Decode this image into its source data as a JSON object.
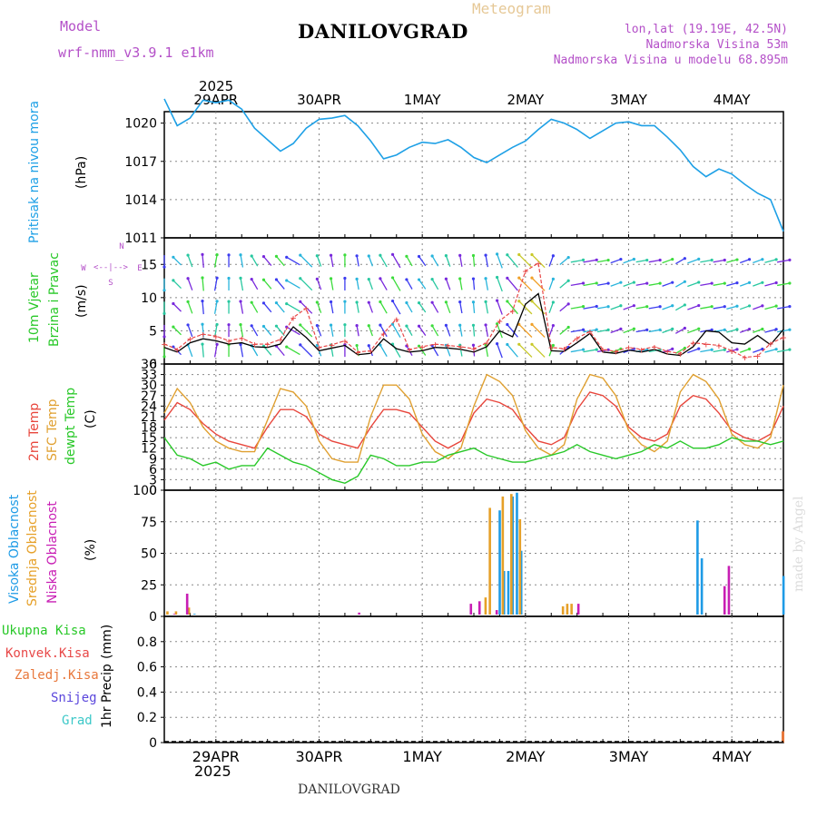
{
  "header": {
    "model_label": "Model",
    "model_name": "wrf-nmm_v3.9.1 e1km",
    "title": "DANILOVGRAD",
    "meteogram_label": "Meteogram",
    "lonlat": "lon,lat (19.19E, 42.5N)",
    "altitude": "Nadmorska Visina 53m",
    "model_altitude": "Nadmorska Visina u modelu 68.895m",
    "footer_title": "DANILOVGRAD",
    "watermark": "made by Angel"
  },
  "colors": {
    "pressure": "#1ea0e6",
    "temp2m": "#e8463c",
    "sfc": "#e0a030",
    "dewpt": "#28c828",
    "high_cloud": "#1e9be6",
    "mid_cloud": "#e6a028",
    "low_cloud": "#c81eb4",
    "purple_text": "#b450c8",
    "model_text": "#b450c8",
    "meteogram_text": "#e6c896"
  },
  "time_axis": {
    "year": "2025",
    "dates": [
      "29APR",
      "30APR",
      "1MAY",
      "2MAY",
      "3MAY",
      "4MAY"
    ]
  },
  "chart_data": [
    {
      "type": "line",
      "panel": "pressure",
      "ylabel_main": "Pritisak na nivou mora",
      "ylabel_unit": "(hPa)",
      "yticks": [
        1011,
        1014,
        1017,
        1020
      ],
      "ylim": [
        1011,
        1020.9
      ],
      "x_hours": [
        0,
        3,
        6,
        9,
        12,
        15,
        18,
        21,
        24,
        27,
        30,
        33,
        36,
        39,
        42,
        45,
        48,
        51,
        54,
        57,
        60,
        63,
        66,
        69,
        72,
        75,
        78,
        81,
        84,
        87,
        90,
        93,
        96,
        99,
        102,
        105,
        108,
        111,
        114,
        117,
        120,
        123,
        126,
        129,
        132,
        135,
        138,
        141,
        144
      ],
      "series": [
        {
          "values": [
            1021.9,
            1019.8,
            1020.4,
            1021.8,
            1021.6,
            1021.8,
            1021.1,
            1019.6,
            1018.7,
            1017.8,
            1018.4,
            1019.6,
            1020.3,
            1020.4,
            1020.6,
            1019.8,
            1018.6,
            1017.2,
            1017.5,
            1018.1,
            1018.5,
            1018.4,
            1018.7,
            1018.1,
            1017.3,
            1016.9,
            1017.5,
            1018.1,
            1018.6,
            1019.5,
            1020.3,
            1020.0,
            1019.5,
            1018.8,
            1019.4,
            1020.0,
            1020.1,
            1019.8,
            1019.8,
            1018.9,
            1017.9,
            1016.6,
            1015.8,
            1016.4,
            1016.0,
            1015.2,
            1014.5,
            1014.0,
            1011.5
          ]
        }
      ]
    },
    {
      "type": "line",
      "panel": "wind",
      "ylabel_main": "10m Vjetar",
      "ylabel_sub": "Brzina i Pravac",
      "ylabel_unit": "(m/s)",
      "compass": [
        "N",
        "W",
        "E",
        "S",
        "<--|-->"
      ],
      "yticks": [
        0,
        5,
        10,
        15
      ],
      "ylim": [
        0,
        19
      ],
      "x_hours": [
        0,
        3,
        6,
        9,
        12,
        15,
        18,
        21,
        24,
        27,
        30,
        33,
        36,
        39,
        42,
        45,
        48,
        51,
        54,
        57,
        60,
        63,
        66,
        69,
        72,
        75,
        78,
        81,
        84,
        87,
        90,
        93,
        96,
        99,
        102,
        105,
        108,
        111,
        114,
        117,
        120,
        123,
        126,
        129,
        132,
        135,
        138,
        141,
        144
      ],
      "series": [
        {
          "values": [
            2.5,
            1.8,
            3.2,
            3.8,
            3.5,
            3.0,
            3.2,
            2.6,
            2.5,
            3.0,
            5.6,
            4.0,
            2.0,
            2.4,
            2.8,
            1.4,
            1.6,
            3.8,
            2.3,
            1.8,
            2.0,
            2.5,
            2.4,
            2.2,
            1.8,
            2.6,
            5.0,
            4.1,
            9.0,
            10.6,
            2.0,
            1.9,
            3.2,
            4.6,
            1.8,
            1.6,
            2.1,
            1.8,
            2.2,
            1.5,
            1.3,
            2.6,
            5.0,
            4.8,
            3.2,
            3.0,
            4.3,
            2.9,
            5.2
          ]
        },
        {
          "values": [
            3.0,
            2.2,
            3.8,
            4.5,
            4.2,
            3.5,
            3.9,
            3.0,
            3.0,
            3.7,
            7.0,
            8.4,
            2.5,
            2.9,
            3.5,
            1.8,
            2.0,
            4.6,
            6.8,
            2.2,
            2.6,
            3.0,
            2.8,
            2.6,
            2.3,
            3.2,
            6.5,
            8.0,
            14.0,
            15.2,
            2.5,
            2.3,
            3.9,
            4.9,
            2.2,
            1.9,
            2.5,
            2.2,
            2.6,
            1.9,
            1.6,
            3.2,
            3.0,
            2.8,
            2.0,
            1.0,
            1.2,
            3.1,
            4.0
          ]
        }
      ],
      "wind_dir_deg": [
        0,
        135,
        160,
        175,
        190,
        180,
        170,
        150,
        140,
        140,
        120,
        135,
        160,
        170,
        180,
        170,
        160,
        150,
        150,
        150,
        145,
        150,
        160,
        170,
        175,
        170,
        160,
        140,
        135,
        135,
        200,
        230,
        260,
        260,
        260,
        250,
        250,
        260,
        260,
        250,
        240,
        250,
        260,
        260,
        255,
        250,
        250,
        255,
        260
      ]
    },
    {
      "type": "line",
      "panel": "temperature",
      "ylabel_main": "2m Temp",
      "ylabel_sfc": "SFC Temp",
      "ylabel_dew": "dewpt Temp",
      "ylabel_unit": "(C)",
      "yticks": [
        0,
        3,
        6,
        9,
        12,
        15,
        18,
        21,
        24,
        27,
        30,
        33,
        36
      ],
      "ylim": [
        0,
        36
      ],
      "x_hours": [
        0,
        3,
        6,
        9,
        12,
        15,
        18,
        21,
        24,
        27,
        30,
        33,
        36,
        39,
        42,
        45,
        48,
        51,
        54,
        57,
        60,
        63,
        66,
        69,
        72,
        75,
        78,
        81,
        84,
        87,
        90,
        93,
        96,
        99,
        102,
        105,
        108,
        111,
        114,
        117,
        120,
        123,
        126,
        129,
        132,
        135,
        138,
        141,
        144
      ],
      "series": [
        {
          "name": "2m Temp",
          "values": [
            20,
            25,
            23,
            19,
            16,
            14,
            13,
            12,
            18,
            23,
            23,
            21,
            16,
            14,
            13,
            12,
            18,
            23,
            23,
            22,
            18,
            14,
            12,
            14,
            22,
            26,
            25,
            23,
            18,
            14,
            13,
            15,
            23,
            28,
            27,
            24,
            18,
            15,
            14,
            16,
            24,
            27,
            26,
            22,
            17,
            15,
            14,
            16,
            24
          ]
        },
        {
          "name": "SFC Temp",
          "values": [
            22,
            29,
            25,
            18,
            14,
            12,
            11,
            11,
            20,
            29,
            28,
            24,
            14,
            9,
            8,
            8,
            21,
            30,
            30,
            26,
            16,
            11,
            9,
            12,
            24,
            33,
            31,
            27,
            17,
            12,
            10,
            13,
            26,
            33,
            32,
            27,
            17,
            13,
            11,
            14,
            28,
            33,
            31,
            26,
            16,
            13,
            12,
            15,
            30
          ]
        },
        {
          "name": "dewpt Temp",
          "values": [
            15,
            10,
            9,
            7,
            8,
            6,
            7,
            7,
            12,
            10,
            8,
            7,
            5,
            3,
            2,
            4,
            10,
            9,
            7,
            7,
            8,
            8,
            10,
            11,
            12,
            10,
            9,
            8,
            8,
            9,
            10,
            11,
            13,
            11,
            10,
            9,
            10,
            11,
            13,
            12,
            14,
            12,
            12,
            13,
            15,
            14,
            14,
            13,
            14
          ]
        }
      ]
    },
    {
      "type": "bar",
      "panel": "clouds",
      "ylabel_high": "Visoka Oblacnost",
      "ylabel_mid": "Srednja Oblacnost",
      "ylabel_low": "Niska Oblacnost",
      "ylabel_unit": "(%)",
      "yticks": [
        0,
        25,
        50,
        75,
        100
      ],
      "ylim": [
        0,
        100
      ],
      "series": [
        {
          "name": "Visoka Oblacnost",
          "points": [
            [
              7,
              2
            ],
            [
              78,
              84
            ],
            [
              79,
              36
            ],
            [
              80,
              36
            ],
            [
              81,
              95
            ],
            [
              82,
              98
            ],
            [
              83,
              52
            ],
            [
              124,
              76
            ],
            [
              125,
              46
            ],
            [
              144,
              32
            ]
          ]
        },
        {
          "name": "Srednja Oblacnost",
          "points": [
            [
              1,
              4
            ],
            [
              3,
              4
            ],
            [
              6,
              7
            ],
            [
              75,
              15
            ],
            [
              76,
              86
            ],
            [
              79,
              95
            ],
            [
              81,
              97
            ],
            [
              83,
              77
            ],
            [
              93,
              8
            ],
            [
              94,
              10
            ],
            [
              95,
              10
            ]
          ]
        },
        {
          "name": "Niska Oblacnost",
          "points": [
            [
              2,
              2
            ],
            [
              5,
              18
            ],
            [
              45,
              3
            ],
            [
              71,
              10
            ],
            [
              73,
              12
            ],
            [
              77,
              5
            ],
            [
              96,
              10
            ],
            [
              130,
              24
            ],
            [
              131,
              40
            ]
          ]
        }
      ]
    },
    {
      "type": "bar",
      "panel": "precip",
      "ylabel_main": "1hr Precip",
      "ylabel_unit": "(mm)",
      "legend": [
        "Ukupna Kisa",
        "Konvek.Kisa",
        "Zaledj.Kisa",
        "Snijeg",
        "Grad"
      ],
      "legend_colors": [
        "#28c828",
        "#e84848",
        "#e8783c",
        "#5a46dc",
        "#3cc8c8"
      ],
      "yticks": [
        0,
        0.2,
        0.4,
        0.6,
        0.8
      ],
      "ylim": [
        0,
        1
      ],
      "series": [
        {
          "name": "Ukupna Kisa",
          "points": [
            [
              144,
              0.09
            ]
          ]
        }
      ]
    }
  ]
}
